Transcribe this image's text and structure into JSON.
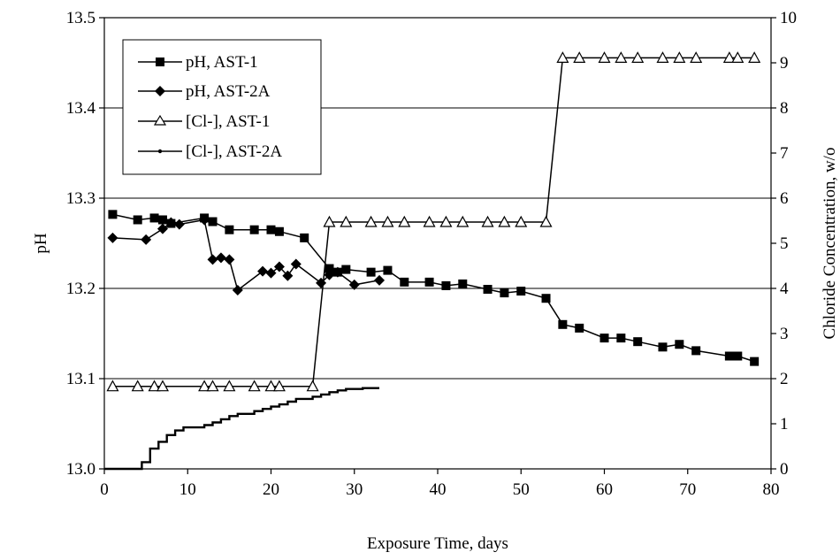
{
  "chart_data": {
    "type": "line",
    "xlabel": "Exposure Time, days",
    "ylabel_left": "pH",
    "ylabel_right": "Chloride Concentration, w/o",
    "xlim": [
      0,
      80
    ],
    "ylim_left": [
      13.0,
      13.5
    ],
    "ylim_right": [
      0,
      10
    ],
    "x_ticks": [
      "0",
      "10",
      "20",
      "30",
      "40",
      "50",
      "60",
      "70",
      "80"
    ],
    "y_ticks_left": [
      "13.0",
      "13.1",
      "13.2",
      "13.3",
      "13.4",
      "13.5"
    ],
    "y_ticks_right": [
      "0",
      "1",
      "2",
      "3",
      "4",
      "5",
      "6",
      "7",
      "8",
      "9",
      "10"
    ],
    "grid": "horizontal",
    "legend_position": "top-left",
    "series": [
      {
        "name": "pH, AST-1",
        "axis": "left",
        "marker": "square",
        "points": [
          [
            1,
            13.282
          ],
          [
            4,
            13.276
          ],
          [
            6,
            13.278
          ],
          [
            7,
            13.276
          ],
          [
            8,
            13.272
          ],
          [
            12,
            13.278
          ],
          [
            13,
            13.274
          ],
          [
            15,
            13.265
          ],
          [
            18,
            13.265
          ],
          [
            20,
            13.265
          ],
          [
            21,
            13.263
          ],
          [
            24,
            13.256
          ],
          [
            27,
            13.222
          ],
          [
            28,
            13.218
          ],
          [
            29,
            13.221
          ],
          [
            32,
            13.218
          ],
          [
            34,
            13.22
          ],
          [
            36,
            13.207
          ],
          [
            39,
            13.207
          ],
          [
            41,
            13.203
          ],
          [
            43,
            13.205
          ],
          [
            46,
            13.199
          ],
          [
            48,
            13.195
          ],
          [
            50,
            13.197
          ],
          [
            53,
            13.189
          ],
          [
            55,
            13.16
          ],
          [
            57,
            13.156
          ],
          [
            60,
            13.145
          ],
          [
            62,
            13.145
          ],
          [
            64,
            13.141
          ],
          [
            67,
            13.135
          ],
          [
            69,
            13.138
          ],
          [
            71,
            13.131
          ],
          [
            75,
            13.125
          ],
          [
            76,
            13.125
          ],
          [
            78,
            13.119
          ]
        ]
      },
      {
        "name": "pH, AST-2A",
        "axis": "left",
        "marker": "diamond",
        "points": [
          [
            1,
            13.256
          ],
          [
            5,
            13.254
          ],
          [
            7,
            13.266
          ],
          [
            8,
            13.273
          ],
          [
            9,
            13.271
          ],
          [
            12,
            13.276
          ],
          [
            13,
            13.232
          ],
          [
            14,
            13.234
          ],
          [
            15,
            13.232
          ],
          [
            16,
            13.198
          ],
          [
            19,
            13.219
          ],
          [
            20,
            13.217
          ],
          [
            21,
            13.224
          ],
          [
            22,
            13.214
          ],
          [
            23,
            13.227
          ],
          [
            26,
            13.206
          ],
          [
            27,
            13.215
          ],
          [
            28,
            13.218
          ],
          [
            30,
            13.204
          ],
          [
            33,
            13.209
          ]
        ]
      },
      {
        "name": "[Cl-], AST-1",
        "axis": "right",
        "marker": "triangle-open",
        "points": [
          [
            1,
            1.83
          ],
          [
            4,
            1.83
          ],
          [
            6,
            1.83
          ],
          [
            7,
            1.83
          ],
          [
            12,
            1.83
          ],
          [
            13,
            1.83
          ],
          [
            15,
            1.83
          ],
          [
            18,
            1.83
          ],
          [
            20,
            1.83
          ],
          [
            21,
            1.83
          ],
          [
            25,
            1.83
          ],
          [
            27,
            5.47
          ],
          [
            29,
            5.47
          ],
          [
            32,
            5.47
          ],
          [
            34,
            5.47
          ],
          [
            36,
            5.47
          ],
          [
            39,
            5.47
          ],
          [
            41,
            5.47
          ],
          [
            43,
            5.47
          ],
          [
            46,
            5.47
          ],
          [
            48,
            5.47
          ],
          [
            50,
            5.47
          ],
          [
            53,
            5.47
          ],
          [
            55,
            9.11
          ],
          [
            57,
            9.11
          ],
          [
            60,
            9.11
          ],
          [
            62,
            9.11
          ],
          [
            64,
            9.11
          ],
          [
            67,
            9.11
          ],
          [
            69,
            9.11
          ],
          [
            71,
            9.11
          ],
          [
            75,
            9.11
          ],
          [
            76,
            9.11
          ],
          [
            78,
            9.11
          ]
        ]
      },
      {
        "name": "[Cl-], AST-2A",
        "axis": "right",
        "marker": "dot",
        "points": [
          [
            0,
            0
          ],
          [
            4.5,
            0
          ],
          [
            4.5,
            0.15
          ],
          [
            5.5,
            0.15
          ],
          [
            5.5,
            0.45
          ],
          [
            6.5,
            0.45
          ],
          [
            6.5,
            0.6
          ],
          [
            7.5,
            0.6
          ],
          [
            7.5,
            0.75
          ],
          [
            8.5,
            0.75
          ],
          [
            8.5,
            0.85
          ],
          [
            9.5,
            0.85
          ],
          [
            9.5,
            0.92
          ],
          [
            12,
            0.92
          ],
          [
            12,
            0.97
          ],
          [
            13,
            0.97
          ],
          [
            13,
            1.03
          ],
          [
            14,
            1.03
          ],
          [
            14,
            1.1
          ],
          [
            15,
            1.1
          ],
          [
            15,
            1.17
          ],
          [
            16,
            1.17
          ],
          [
            16,
            1.22
          ],
          [
            18,
            1.22
          ],
          [
            18,
            1.28
          ],
          [
            19,
            1.28
          ],
          [
            19,
            1.33
          ],
          [
            20,
            1.33
          ],
          [
            20,
            1.38
          ],
          [
            21,
            1.38
          ],
          [
            21,
            1.43
          ],
          [
            22,
            1.43
          ],
          [
            22,
            1.49
          ],
          [
            23,
            1.49
          ],
          [
            23,
            1.55
          ],
          [
            25,
            1.55
          ],
          [
            25,
            1.6
          ],
          [
            26,
            1.6
          ],
          [
            26,
            1.65
          ],
          [
            27,
            1.65
          ],
          [
            27,
            1.7
          ],
          [
            28,
            1.7
          ],
          [
            28,
            1.74
          ],
          [
            29,
            1.74
          ],
          [
            29,
            1.77
          ],
          [
            31,
            1.77
          ],
          [
            31,
            1.79
          ],
          [
            33,
            1.79
          ]
        ]
      }
    ]
  }
}
